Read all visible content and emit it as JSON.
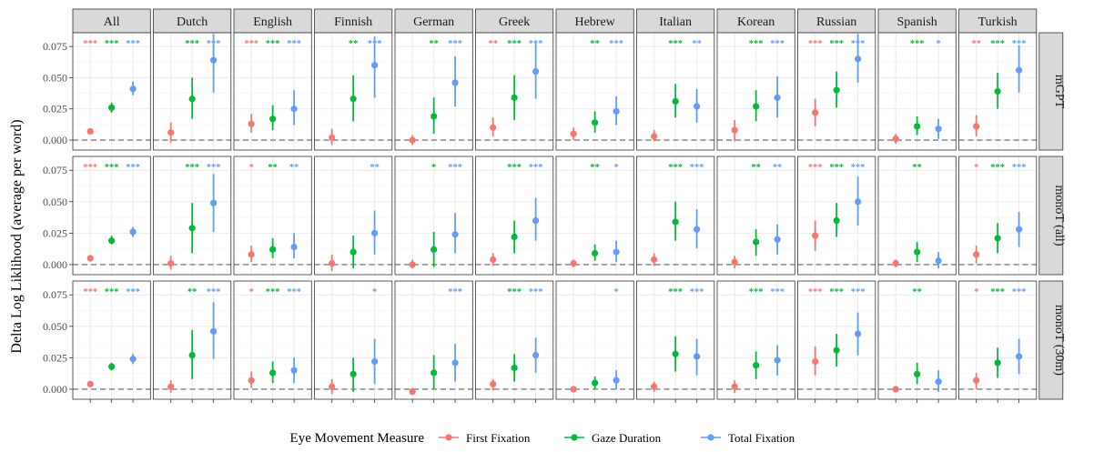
{
  "chart_data": {
    "type": "scatter",
    "description_style": "faceted point-range plot",
    "ylabel": "Delta Log Liklihood (average  per word)",
    "xlabel": "",
    "ylim": [
      -0.008,
      0.086
    ],
    "yticks": [
      0.0,
      0.025,
      0.05,
      0.075
    ],
    "ytick_labels": [
      "0.000",
      "0.025",
      "0.050",
      "0.075"
    ],
    "reference_line": 0,
    "grid": true,
    "legend": {
      "title": "Eye Movement Measure",
      "placement": "bottom",
      "entries": [
        {
          "name": "First Fixation",
          "color": "#F8766D"
        },
        {
          "name": "Gaze Duration",
          "color": "#00BA38"
        },
        {
          "name": "Total Fixation",
          "color": "#619CFF"
        }
      ]
    },
    "columns": [
      "All",
      "Dutch",
      "English",
      "Finnish",
      "German",
      "Greek",
      "Hebrew",
      "Italian",
      "Korean",
      "Russian",
      "Spanish",
      "Turkish"
    ],
    "rows": [
      "mGPT",
      "monoT (all)",
      "monoT (30m)"
    ],
    "measures": [
      "First Fixation",
      "Gaze Duration",
      "Total Fixation"
    ],
    "panels": [
      [
        {
          "estimates": [
            0.007,
            0.026,
            0.041
          ],
          "lower": [
            0.006,
            0.022,
            0.036
          ],
          "upper": [
            0.009,
            0.03,
            0.047
          ],
          "significance": [
            "***",
            "***",
            "***"
          ]
        },
        {
          "estimates": [
            0.006,
            0.033,
            0.064
          ],
          "lower": [
            -0.002,
            0.017,
            0.038
          ],
          "upper": [
            0.014,
            0.05,
            0.085
          ],
          "significance": [
            "",
            "***",
            "***"
          ]
        },
        {
          "estimates": [
            0.013,
            0.017,
            0.025
          ],
          "lower": [
            0.006,
            0.008,
            0.012
          ],
          "upper": [
            0.021,
            0.028,
            0.04
          ],
          "significance": [
            "***",
            "***",
            "***"
          ]
        },
        {
          "estimates": [
            0.002,
            0.033,
            0.06
          ],
          "lower": [
            -0.004,
            0.015,
            0.034
          ],
          "upper": [
            0.009,
            0.052,
            0.083
          ],
          "significance": [
            "",
            "**",
            "***"
          ]
        },
        {
          "estimates": [
            0.0,
            0.019,
            0.046
          ],
          "lower": [
            -0.004,
            0.005,
            0.027
          ],
          "upper": [
            0.004,
            0.034,
            0.067
          ],
          "significance": [
            "",
            "**",
            "***"
          ]
        },
        {
          "estimates": [
            0.01,
            0.034,
            0.055
          ],
          "lower": [
            0.003,
            0.016,
            0.033
          ],
          "upper": [
            0.018,
            0.052,
            0.078
          ],
          "significance": [
            "**",
            "***",
            "***"
          ]
        },
        {
          "estimates": [
            0.005,
            0.014,
            0.023
          ],
          "lower": [
            0.0,
            0.006,
            0.012
          ],
          "upper": [
            0.01,
            0.023,
            0.035
          ],
          "significance": [
            "",
            "**",
            "***"
          ]
        },
        {
          "estimates": [
            0.003,
            0.031,
            0.027
          ],
          "lower": [
            -0.001,
            0.018,
            0.014
          ],
          "upper": [
            0.008,
            0.045,
            0.041
          ],
          "significance": [
            "",
            "***",
            "**"
          ]
        },
        {
          "estimates": [
            0.008,
            0.027,
            0.034
          ],
          "lower": [
            -0.001,
            0.015,
            0.018
          ],
          "upper": [
            0.016,
            0.04,
            0.051
          ],
          "significance": [
            "",
            "***",
            "***"
          ]
        },
        {
          "estimates": [
            0.022,
            0.04,
            0.065
          ],
          "lower": [
            0.011,
            0.026,
            0.046
          ],
          "upper": [
            0.033,
            0.055,
            0.085
          ],
          "significance": [
            "***",
            "***",
            "***"
          ]
        },
        {
          "estimates": [
            0.001,
            0.011,
            0.009
          ],
          "lower": [
            -0.003,
            0.004,
            0.001
          ],
          "upper": [
            0.005,
            0.019,
            0.017
          ],
          "significance": [
            "",
            "***",
            "*"
          ]
        },
        {
          "estimates": [
            0.011,
            0.039,
            0.056
          ],
          "lower": [
            0.003,
            0.025,
            0.038
          ],
          "upper": [
            0.02,
            0.054,
            0.076
          ],
          "significance": [
            "**",
            "***",
            "***"
          ]
        }
      ],
      [
        {
          "estimates": [
            0.005,
            0.019,
            0.026
          ],
          "lower": [
            0.003,
            0.016,
            0.022
          ],
          "upper": [
            0.007,
            0.023,
            0.03
          ],
          "significance": [
            "***",
            "***",
            "***"
          ]
        },
        {
          "estimates": [
            0.001,
            0.029,
            0.049
          ],
          "lower": [
            -0.004,
            0.009,
            0.026
          ],
          "upper": [
            0.007,
            0.049,
            0.072
          ],
          "significance": [
            "",
            "***",
            "***"
          ]
        },
        {
          "estimates": [
            0.008,
            0.012,
            0.014
          ],
          "lower": [
            0.002,
            0.005,
            0.005
          ],
          "upper": [
            0.015,
            0.021,
            0.025
          ],
          "significance": [
            "*",
            "**",
            "**"
          ]
        },
        {
          "estimates": [
            0.001,
            0.01,
            0.025
          ],
          "lower": [
            -0.005,
            -0.003,
            0.008
          ],
          "upper": [
            0.008,
            0.023,
            0.043
          ],
          "significance": [
            "",
            "",
            "**"
          ]
        },
        {
          "estimates": [
            0.0,
            0.012,
            0.024
          ],
          "lower": [
            -0.003,
            -0.002,
            0.009
          ],
          "upper": [
            0.004,
            0.026,
            0.041
          ],
          "significance": [
            "",
            "*",
            "***"
          ]
        },
        {
          "estimates": [
            0.004,
            0.022,
            0.035
          ],
          "lower": [
            -0.001,
            0.009,
            0.019
          ],
          "upper": [
            0.009,
            0.035,
            0.053
          ],
          "significance": [
            "",
            "***",
            "***"
          ]
        },
        {
          "estimates": [
            0.001,
            0.009,
            0.01
          ],
          "lower": [
            -0.002,
            0.003,
            0.002
          ],
          "upper": [
            0.004,
            0.016,
            0.019
          ],
          "significance": [
            "",
            "**",
            "*"
          ]
        },
        {
          "estimates": [
            0.004,
            0.034,
            0.028
          ],
          "lower": [
            -0.001,
            0.019,
            0.013
          ],
          "upper": [
            0.009,
            0.05,
            0.044
          ],
          "significance": [
            "",
            "***",
            "***"
          ]
        },
        {
          "estimates": [
            0.002,
            0.018,
            0.02
          ],
          "lower": [
            -0.003,
            0.007,
            0.008
          ],
          "upper": [
            0.007,
            0.028,
            0.032
          ],
          "significance": [
            "",
            "**",
            "**"
          ]
        },
        {
          "estimates": [
            0.023,
            0.035,
            0.05
          ],
          "lower": [
            0.011,
            0.022,
            0.031
          ],
          "upper": [
            0.035,
            0.049,
            0.07
          ],
          "significance": [
            "***",
            "***",
            "***"
          ]
        },
        {
          "estimates": [
            0.001,
            0.01,
            0.003
          ],
          "lower": [
            -0.002,
            0.002,
            -0.003
          ],
          "upper": [
            0.004,
            0.018,
            0.01
          ],
          "significance": [
            "",
            "**",
            ""
          ]
        },
        {
          "estimates": [
            0.008,
            0.021,
            0.028
          ],
          "lower": [
            0.001,
            0.009,
            0.014
          ],
          "upper": [
            0.015,
            0.033,
            0.042
          ],
          "significance": [
            "*",
            "***",
            "***"
          ]
        }
      ],
      [
        {
          "estimates": [
            0.004,
            0.018,
            0.024
          ],
          "lower": [
            0.002,
            0.015,
            0.02
          ],
          "upper": [
            0.006,
            0.021,
            0.028
          ],
          "significance": [
            "***",
            "***",
            "***"
          ]
        },
        {
          "estimates": [
            0.002,
            0.027,
            0.046
          ],
          "lower": [
            -0.003,
            0.008,
            0.024
          ],
          "upper": [
            0.007,
            0.047,
            0.069
          ],
          "significance": [
            "",
            "**",
            "***"
          ]
        },
        {
          "estimates": [
            0.007,
            0.013,
            0.015
          ],
          "lower": [
            0.001,
            0.005,
            0.005
          ],
          "upper": [
            0.014,
            0.022,
            0.025
          ],
          "significance": [
            "*",
            "***",
            "***"
          ]
        },
        {
          "estimates": [
            0.002,
            0.012,
            0.022
          ],
          "lower": [
            -0.004,
            -0.002,
            0.004
          ],
          "upper": [
            0.008,
            0.025,
            0.04
          ],
          "significance": [
            "",
            "",
            "*"
          ]
        },
        {
          "estimates": [
            -0.002,
            0.013,
            0.021
          ],
          "lower": [
            -0.004,
            0.0,
            0.006
          ],
          "upper": [
            0.001,
            0.027,
            0.036
          ],
          "significance": [
            "",
            "",
            "***"
          ]
        },
        {
          "estimates": [
            0.004,
            0.017,
            0.027
          ],
          "lower": [
            -0.001,
            0.006,
            0.013
          ],
          "upper": [
            0.008,
            0.028,
            0.041
          ],
          "significance": [
            "",
            "***",
            "***"
          ]
        },
        {
          "estimates": [
            0.0,
            0.005,
            0.007
          ],
          "lower": [
            -0.001,
            0.0,
            0.0
          ],
          "upper": [
            0.001,
            0.01,
            0.015
          ],
          "significance": [
            "",
            "",
            "*"
          ]
        },
        {
          "estimates": [
            0.002,
            0.028,
            0.026
          ],
          "lower": [
            -0.002,
            0.014,
            0.011
          ],
          "upper": [
            0.006,
            0.042,
            0.04
          ],
          "significance": [
            "",
            "***",
            "***"
          ]
        },
        {
          "estimates": [
            0.002,
            0.019,
            0.023
          ],
          "lower": [
            -0.003,
            0.008,
            0.011
          ],
          "upper": [
            0.007,
            0.03,
            0.035
          ],
          "significance": [
            "",
            "***",
            "***"
          ]
        },
        {
          "estimates": [
            0.022,
            0.031,
            0.044
          ],
          "lower": [
            0.011,
            0.018,
            0.027
          ],
          "upper": [
            0.034,
            0.044,
            0.061
          ],
          "significance": [
            "***",
            "***",
            "***"
          ]
        },
        {
          "estimates": [
            0.0,
            0.012,
            0.006
          ],
          "lower": [
            -0.001,
            0.004,
            -0.002
          ],
          "upper": [
            0.002,
            0.021,
            0.015
          ],
          "significance": [
            "",
            "**",
            ""
          ]
        },
        {
          "estimates": [
            0.007,
            0.021,
            0.026
          ],
          "lower": [
            0.0,
            0.009,
            0.012
          ],
          "upper": [
            0.013,
            0.033,
            0.04
          ],
          "significance": [
            "*",
            "***",
            "***"
          ]
        }
      ]
    ]
  }
}
